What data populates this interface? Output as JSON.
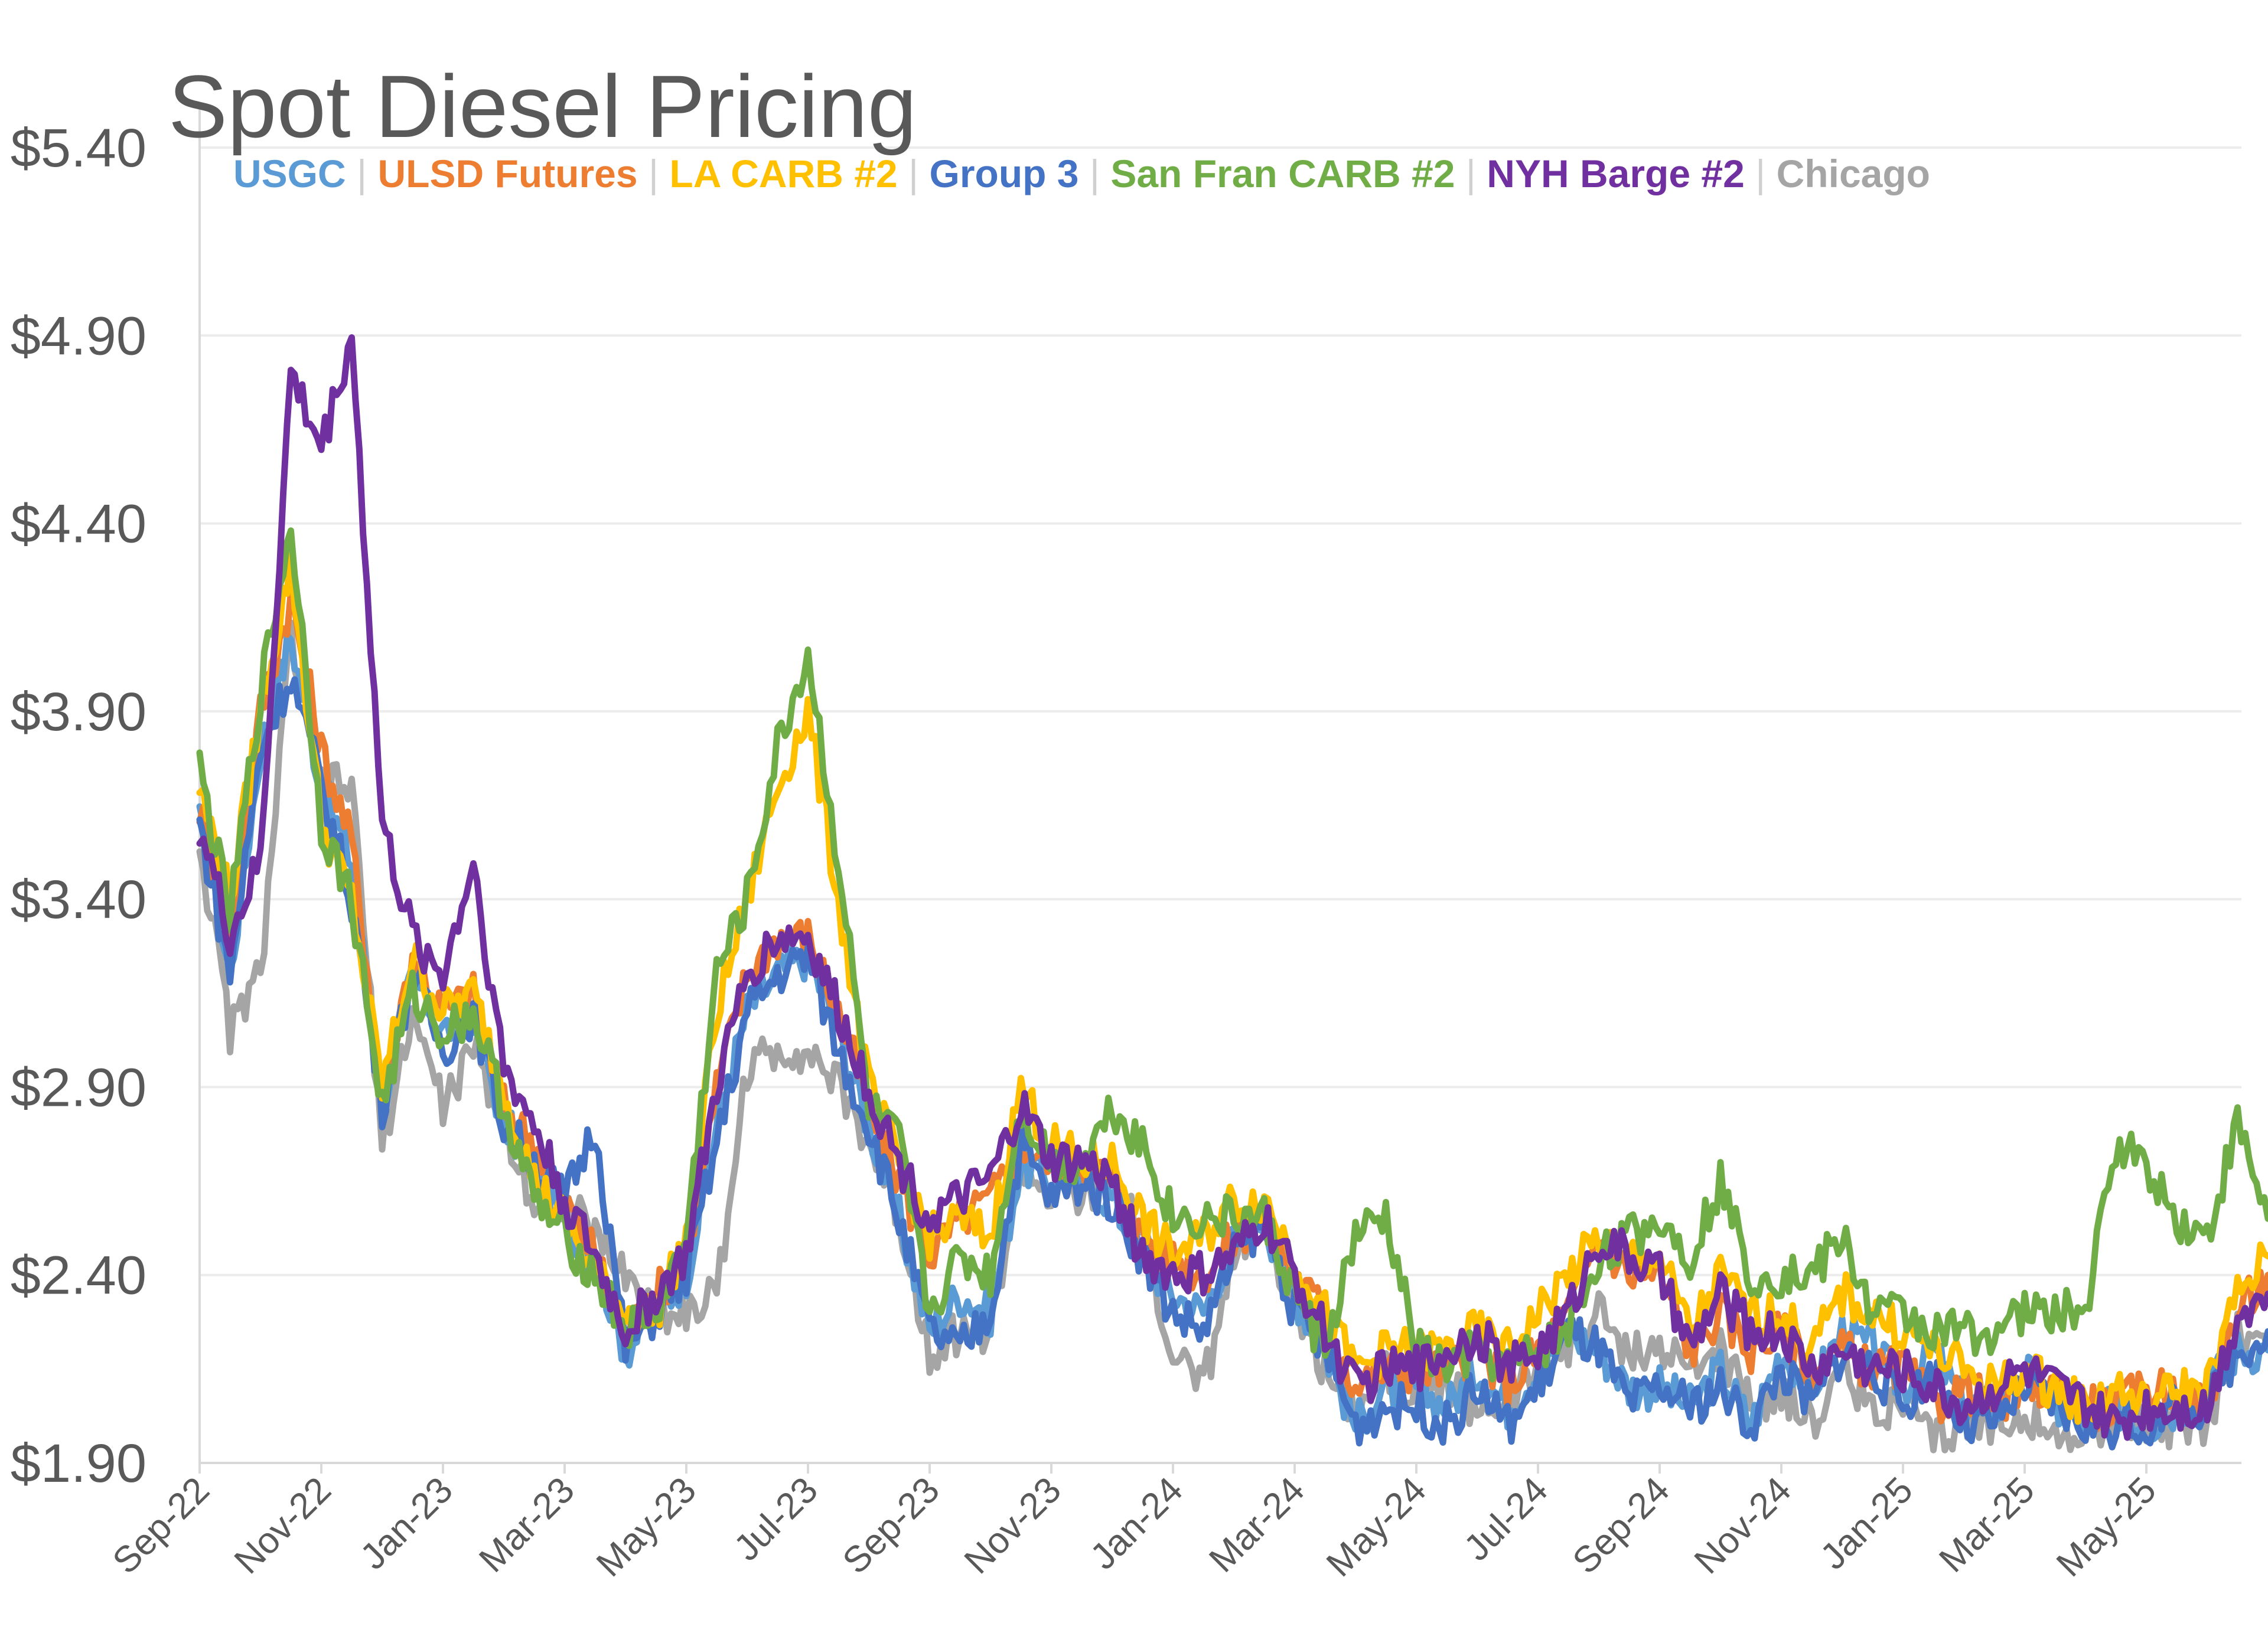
{
  "chart_data": {
    "type": "line",
    "title": "Spot Diesel Pricing",
    "xlabel": "",
    "ylabel": "",
    "ylim": [
      1.9,
      5.4
    ],
    "y_ticks": [
      "$1.90",
      "$2.40",
      "$2.90",
      "$3.40",
      "$3.90",
      "$4.40",
      "$4.90",
      "$5.40"
    ],
    "y_tick_values": [
      1.9,
      2.4,
      2.9,
      3.4,
      3.9,
      4.4,
      4.9,
      5.4
    ],
    "x_ticks": [
      "Sep-22",
      "Nov-22",
      "Jan-23",
      "Mar-23",
      "May-23",
      "Jul-23",
      "Sep-23",
      "Nov-23",
      "Jan-24",
      "Mar-24",
      "May-24",
      "Jul-24",
      "Sep-24",
      "Nov-24",
      "Jan-25",
      "Mar-25",
      "May-25"
    ],
    "x_range_months": [
      0,
      34
    ],
    "legend_position": "top",
    "x_months": [
      0,
      0.5,
      1,
      1.5,
      2,
      2.5,
      3,
      3.5,
      4,
      4.5,
      5,
      5.5,
      6,
      6.5,
      7,
      7.5,
      8,
      8.5,
      9,
      9.5,
      10,
      10.5,
      11,
      11.5,
      12,
      12.5,
      13,
      13.5,
      14,
      14.5,
      15,
      15.5,
      16,
      16.5,
      17,
      17.5,
      18,
      18.5,
      19,
      19.5,
      20,
      20.5,
      21,
      21.5,
      22,
      22.5,
      23,
      23.5,
      24,
      24.5,
      25,
      25.5,
      26,
      26.5,
      27,
      27.5,
      28,
      28.5,
      29,
      29.5,
      30,
      30.5,
      31,
      31.5,
      32,
      32.5,
      33,
      33.5,
      34
    ],
    "series": [
      {
        "name": "USGC",
        "color": "#5b9bd5",
        "values": [
          3.6,
          3.2,
          3.8,
          4.1,
          3.7,
          3.5,
          2.85,
          3.2,
          3.05,
          3.1,
          2.8,
          2.7,
          2.55,
          2.45,
          2.2,
          2.3,
          2.4,
          2.8,
          3.1,
          3.2,
          3.25,
          3.05,
          2.8,
          2.55,
          2.25,
          2.35,
          2.3,
          2.7,
          2.65,
          2.65,
          2.6,
          2.45,
          2.35,
          2.3,
          2.5,
          2.55,
          2.35,
          2.2,
          2.0,
          2.1,
          2.1,
          2.05,
          2.15,
          2.05,
          2.15,
          2.25,
          2.2,
          2.1,
          2.1,
          2.05,
          2.15,
          2.0,
          2.2,
          2.1,
          2.25,
          2.2,
          2.1,
          2.2,
          2.05,
          2.05,
          2.15,
          2.05,
          2.0,
          2.05,
          2.0,
          2.05,
          2.1,
          2.2,
          2.2
        ]
      },
      {
        "name": "ULSD Futures",
        "color": "#ed7d31",
        "values": [
          3.65,
          3.3,
          3.9,
          4.2,
          3.8,
          3.55,
          2.9,
          3.25,
          3.1,
          3.15,
          2.85,
          2.75,
          2.6,
          2.45,
          2.25,
          2.35,
          2.45,
          2.9,
          3.2,
          3.3,
          3.3,
          3.1,
          2.85,
          2.65,
          2.45,
          2.55,
          2.6,
          2.75,
          2.7,
          2.7,
          2.65,
          2.5,
          2.45,
          2.4,
          2.5,
          2.55,
          2.4,
          2.3,
          2.1,
          2.15,
          2.15,
          2.15,
          2.2,
          2.1,
          2.2,
          2.3,
          2.5,
          2.4,
          2.4,
          2.2,
          2.3,
          2.2,
          2.25,
          2.15,
          2.2,
          2.15,
          2.15,
          2.05,
          2.1,
          2.05,
          2.1,
          2.1,
          2.05,
          2.05,
          2.1,
          2.1,
          2.05,
          2.3,
          2.4
        ]
      },
      {
        "name": "LA CARB #2",
        "color": "#ffc000",
        "values": [
          3.7,
          3.4,
          3.9,
          4.3,
          3.6,
          3.4,
          2.9,
          3.25,
          3.1,
          3.15,
          2.9,
          2.65,
          2.55,
          2.4,
          2.3,
          2.3,
          2.5,
          3.1,
          3.4,
          3.7,
          3.9,
          3.4,
          2.9,
          2.7,
          2.5,
          2.55,
          2.5,
          2.9,
          2.75,
          2.7,
          2.7,
          2.55,
          2.45,
          2.5,
          2.6,
          2.6,
          2.45,
          2.3,
          2.15,
          2.2,
          2.2,
          2.2,
          2.25,
          2.2,
          2.3,
          2.4,
          2.5,
          2.45,
          2.45,
          2.25,
          2.4,
          2.3,
          2.3,
          2.2,
          2.35,
          2.3,
          2.25,
          2.2,
          2.15,
          2.1,
          2.15,
          2.1,
          2.05,
          2.1,
          2.05,
          2.1,
          2.1,
          2.35,
          2.45
        ]
      },
      {
        "name": "Group 3",
        "color": "#4472c4",
        "values": [
          3.6,
          3.2,
          3.8,
          4.0,
          3.7,
          3.4,
          2.85,
          3.2,
          3.0,
          3.1,
          2.8,
          2.7,
          2.6,
          2.8,
          2.2,
          2.3,
          2.4,
          2.75,
          3.1,
          3.2,
          3.25,
          3.0,
          2.8,
          2.55,
          2.25,
          2.2,
          2.3,
          2.75,
          2.6,
          2.65,
          2.6,
          2.45,
          2.3,
          2.25,
          2.45,
          2.55,
          2.3,
          2.2,
          2.0,
          2.05,
          2.05,
          2.0,
          2.1,
          2.0,
          2.1,
          2.25,
          2.2,
          2.05,
          2.1,
          2.05,
          2.1,
          2.0,
          2.15,
          2.05,
          2.2,
          2.15,
          2.05,
          2.15,
          2.0,
          2.0,
          2.1,
          2.05,
          2.0,
          2.0,
          2.0,
          2.05,
          2.05,
          2.2,
          2.25
        ]
      },
      {
        "name": "San Fran CARB #2",
        "color": "#70ad47",
        "values": [
          3.75,
          3.35,
          3.95,
          4.4,
          3.6,
          3.4,
          2.85,
          3.15,
          3.05,
          3.1,
          2.85,
          2.6,
          2.5,
          2.4,
          2.25,
          2.3,
          2.5,
          3.2,
          3.4,
          3.8,
          4.05,
          3.5,
          2.85,
          2.75,
          2.3,
          2.45,
          2.4,
          2.85,
          2.7,
          2.7,
          2.85,
          2.75,
          2.55,
          2.55,
          2.55,
          2.55,
          2.35,
          2.2,
          2.5,
          2.55,
          2.2,
          2.15,
          2.2,
          2.15,
          2.2,
          2.25,
          2.45,
          2.5,
          2.55,
          2.45,
          2.65,
          2.4,
          2.4,
          2.4,
          2.5,
          2.3,
          2.3,
          2.25,
          2.25,
          2.25,
          2.3,
          2.3,
          2.3,
          2.75,
          2.7,
          2.55,
          2.5,
          2.8,
          2.55
        ]
      },
      {
        "name": "NYH Barge #2",
        "color": "#7030a0",
        "values": [
          3.6,
          3.3,
          3.5,
          4.8,
          4.6,
          4.9,
          3.6,
          3.3,
          3.2,
          3.5,
          2.95,
          2.8,
          2.6,
          2.45,
          2.25,
          2.35,
          2.45,
          2.9,
          3.2,
          3.3,
          3.3,
          3.1,
          2.9,
          2.7,
          2.55,
          2.6,
          2.65,
          2.85,
          2.7,
          2.7,
          2.65,
          2.45,
          2.4,
          2.4,
          2.45,
          2.55,
          2.4,
          2.25,
          2.1,
          2.15,
          2.15,
          2.2,
          2.25,
          2.15,
          2.2,
          2.3,
          2.5,
          2.45,
          2.4,
          2.2,
          2.35,
          2.25,
          2.25,
          2.15,
          2.2,
          2.15,
          2.15,
          2.1,
          2.05,
          2.1,
          2.15,
          2.1,
          2.05,
          2.0,
          2.05,
          2.05,
          2.05,
          2.3,
          2.35
        ]
      },
      {
        "name": "Chicago",
        "color": "#a5a5a5",
        "values": [
          3.55,
          3.05,
          3.2,
          4.1,
          3.7,
          3.7,
          2.75,
          3.1,
          2.85,
          3.0,
          2.8,
          2.6,
          2.6,
          2.5,
          2.4,
          2.3,
          2.3,
          2.35,
          2.95,
          3.0,
          3.0,
          2.9,
          2.75,
          2.55,
          2.2,
          2.25,
          2.25,
          2.7,
          2.6,
          2.6,
          2.65,
          2.5,
          2.2,
          2.1,
          2.45,
          2.55,
          2.3,
          2.15,
          2.05,
          2.15,
          2.1,
          2.1,
          2.05,
          2.05,
          2.15,
          2.2,
          2.3,
          2.2,
          2.2,
          2.15,
          2.2,
          2.05,
          2.1,
          2.0,
          2.15,
          2.05,
          2.05,
          1.95,
          2.0,
          2.0,
          2.05,
          1.95,
          2.0,
          2.0,
          2.0,
          2.0,
          2.0,
          2.25,
          2.2
        ]
      }
    ]
  }
}
